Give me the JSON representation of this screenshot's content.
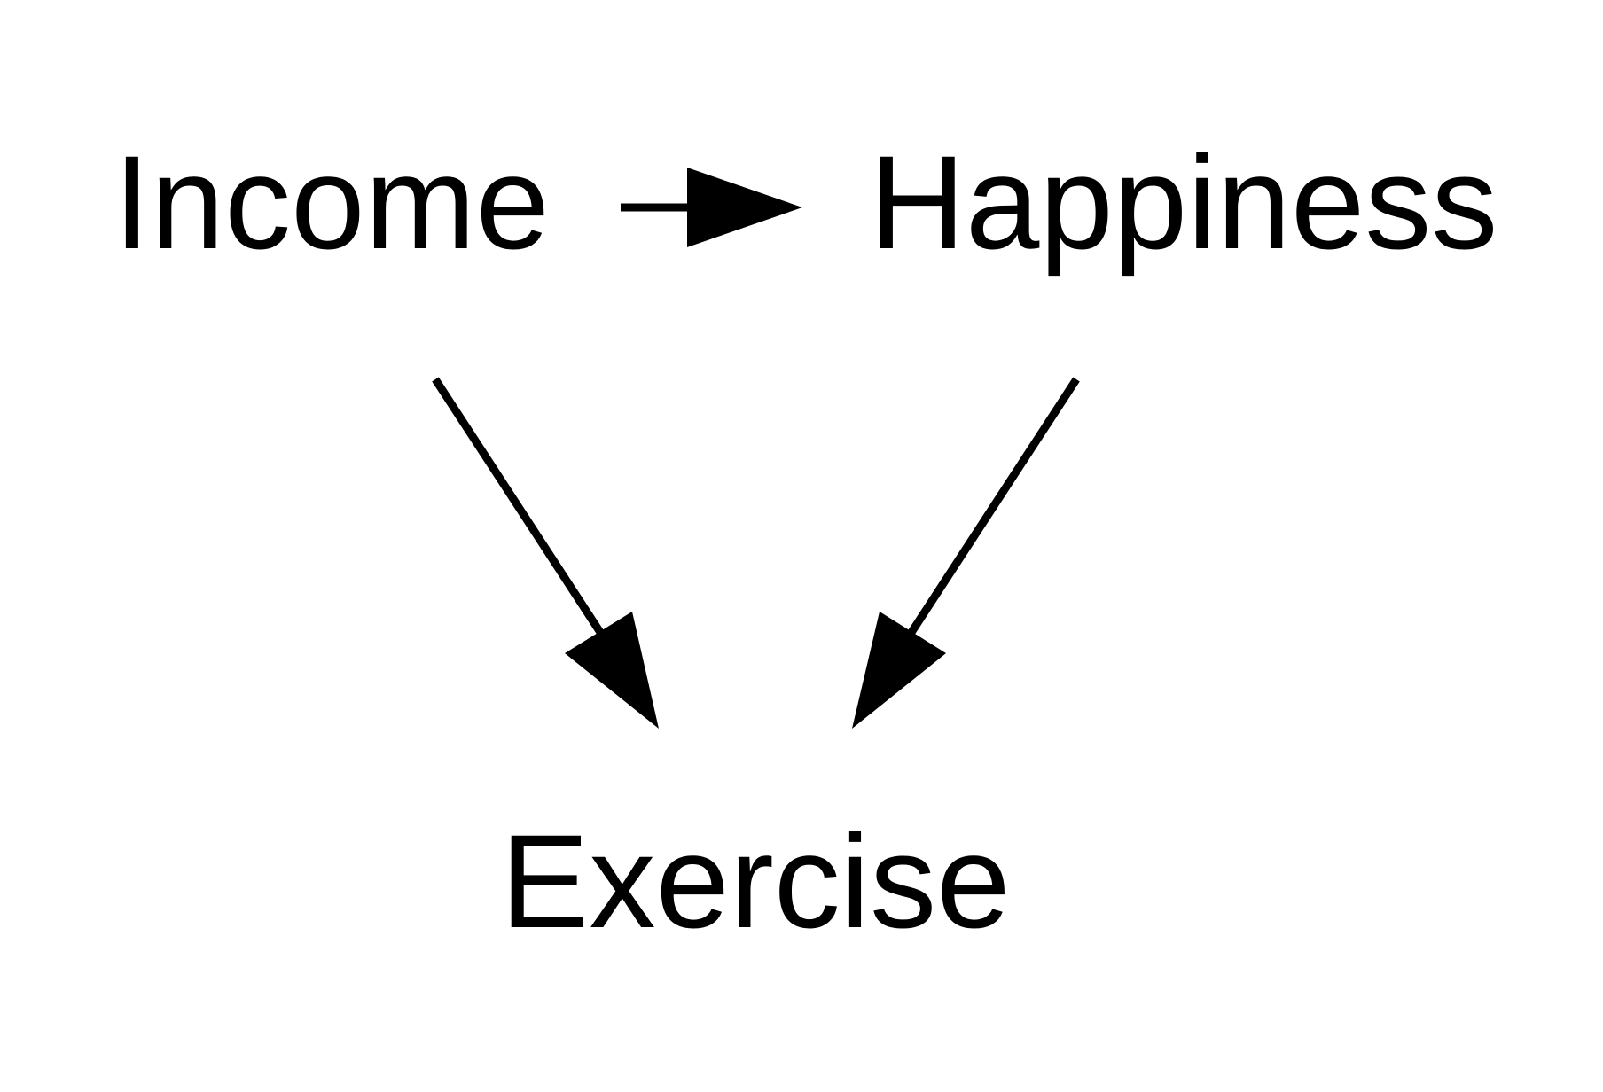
{
  "diagram": {
    "colors": {
      "background": "#ffffff",
      "ink": "#000000"
    },
    "nodes": [
      {
        "id": "income",
        "label": "Income"
      },
      {
        "id": "happiness",
        "label": "Happiness"
      },
      {
        "id": "exercise",
        "label": "Exercise"
      }
    ],
    "edges": [
      {
        "from": "income",
        "to": "happiness"
      },
      {
        "from": "income",
        "to": "exercise"
      },
      {
        "from": "happiness",
        "to": "exercise"
      }
    ]
  }
}
